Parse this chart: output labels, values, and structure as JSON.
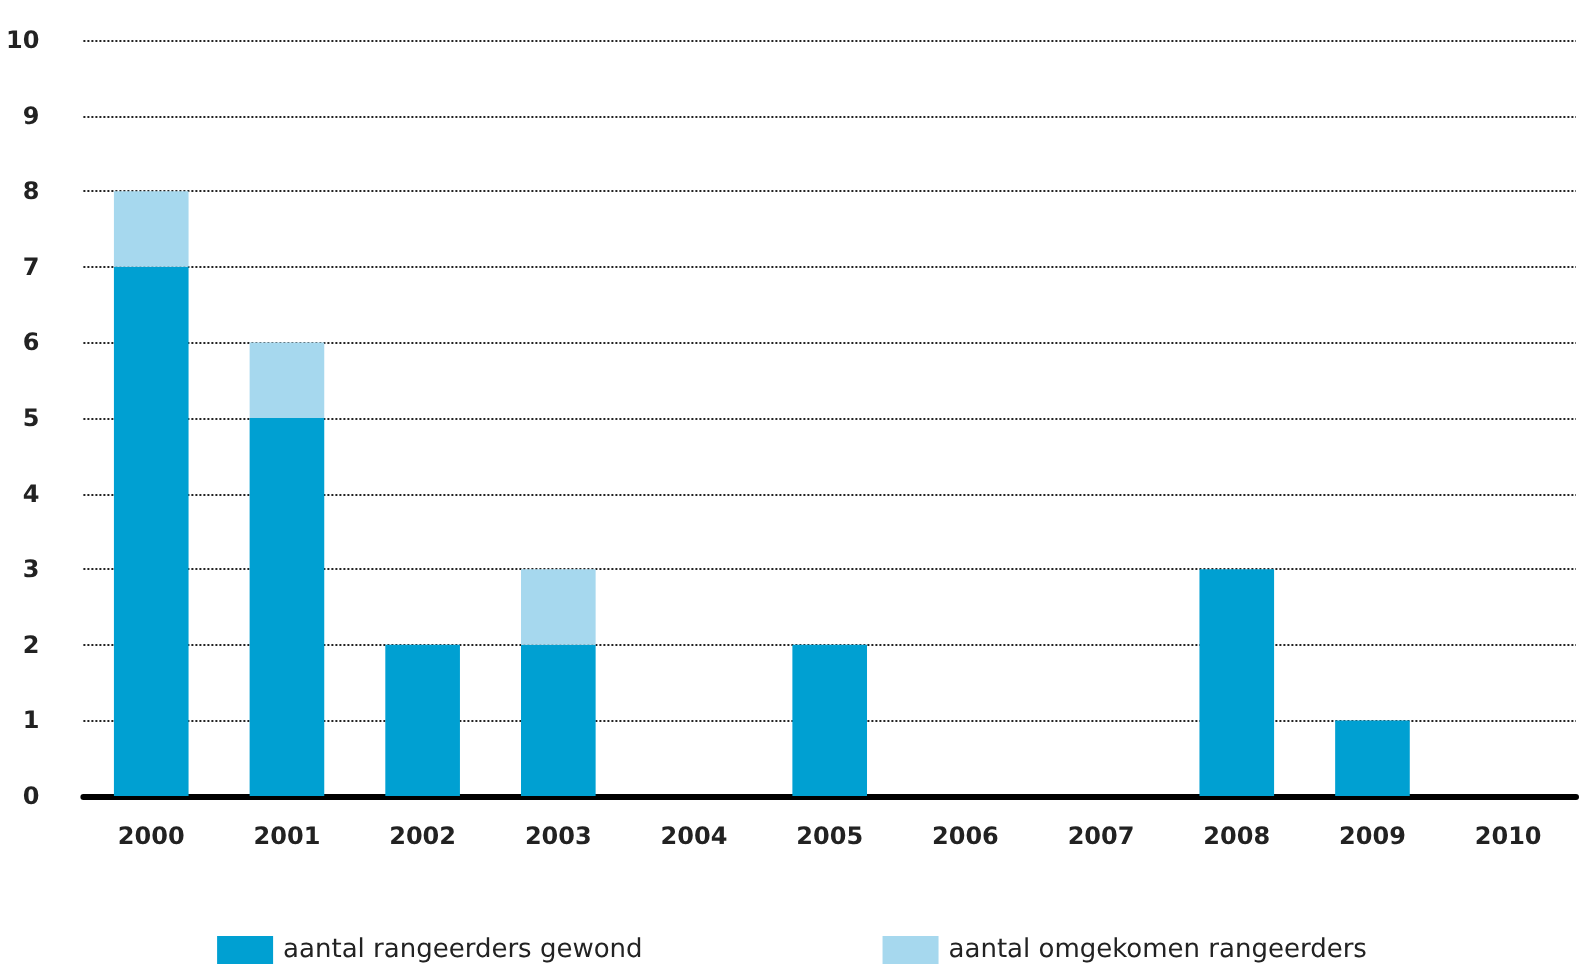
{
  "chart_data": {
    "type": "bar",
    "stacked": true,
    "categories": [
      "2000",
      "2001",
      "2002",
      "2003",
      "2004",
      "2005",
      "2006",
      "2007",
      "2008",
      "2009",
      "2010"
    ],
    "series": [
      {
        "name": "aantal rangeerders gewond",
        "color": "#00a0d2",
        "values": [
          7,
          5,
          2,
          2,
          0,
          2,
          0,
          0,
          3,
          1,
          0
        ]
      },
      {
        "name": "aantal omgekomen rangeerders",
        "color": "#a6d8ee",
        "values": [
          1,
          1,
          0,
          1,
          0,
          0,
          0,
          0,
          0,
          0,
          0
        ]
      }
    ],
    "ylim": [
      0,
      10
    ],
    "yticks": [
      0,
      1,
      2,
      3,
      4,
      5,
      6,
      7,
      8,
      9,
      10
    ],
    "grid": "y",
    "legend": "bottom"
  }
}
